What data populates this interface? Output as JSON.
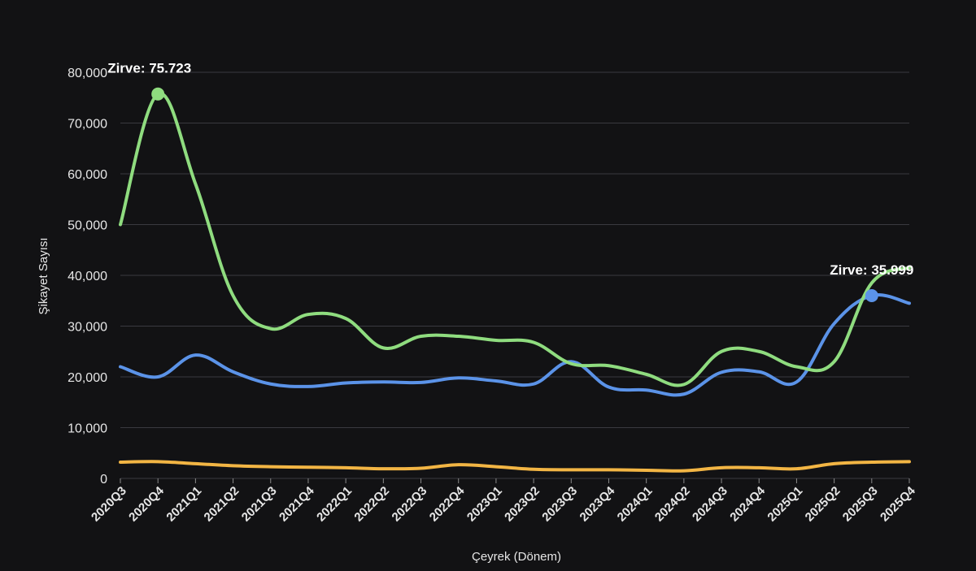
{
  "chart_data": {
    "type": "line",
    "xlabel": "Çeyrek (Dönem)",
    "ylabel": "Şikayet Sayısı",
    "ylim": [
      0,
      80000
    ],
    "yticks": [
      0,
      10000,
      20000,
      30000,
      40000,
      50000,
      60000,
      70000,
      80000
    ],
    "ytick_labels": [
      "0",
      "10,000",
      "20,000",
      "30,000",
      "40,000",
      "50,000",
      "60,000",
      "70,000",
      "80,000"
    ],
    "grid": true,
    "x": [
      "2020Q3",
      "2020Q4",
      "2021Q1",
      "2021Q2",
      "2021Q3",
      "2021Q4",
      "2022Q1",
      "2022Q2",
      "2022Q3",
      "2022Q4",
      "2023Q1",
      "2023Q2",
      "2023Q3",
      "2023Q4",
      "2024Q1",
      "2024Q2",
      "2024Q3",
      "2024Q4",
      "2025Q1",
      "2025Q2",
      "2025Q3",
      "2025Q4"
    ],
    "series": [
      {
        "color": "#8fdc7f",
        "values": [
          50000,
          75723,
          58000,
          36000,
          29500,
          32300,
          31500,
          25700,
          28000,
          28000,
          27200,
          26800,
          22600,
          22200,
          20500,
          18500,
          25000,
          25000,
          22000,
          23000,
          38500,
          41500
        ]
      },
      {
        "color": "#5b93e8",
        "values": [
          22000,
          20000,
          24300,
          21000,
          18600,
          18100,
          18800,
          19000,
          18900,
          19800,
          19200,
          18600,
          23000,
          18000,
          17400,
          16600,
          20900,
          21000,
          19000,
          30500,
          35999,
          34500
        ]
      },
      {
        "color": "#f2b544",
        "values": [
          3200,
          3300,
          2900,
          2500,
          2300,
          2200,
          2100,
          1900,
          2000,
          2700,
          2300,
          1800,
          1700,
          1700,
          1600,
          1500,
          2100,
          2100,
          1900,
          2900,
          3200,
          3300
        ]
      }
    ],
    "annotations": [
      {
        "text": "Zirve: 75.723",
        "series": 0,
        "index": 1,
        "value": 75723
      },
      {
        "text": "Zirve: 35.999",
        "series": 1,
        "index": 20,
        "value": 35999
      }
    ]
  }
}
